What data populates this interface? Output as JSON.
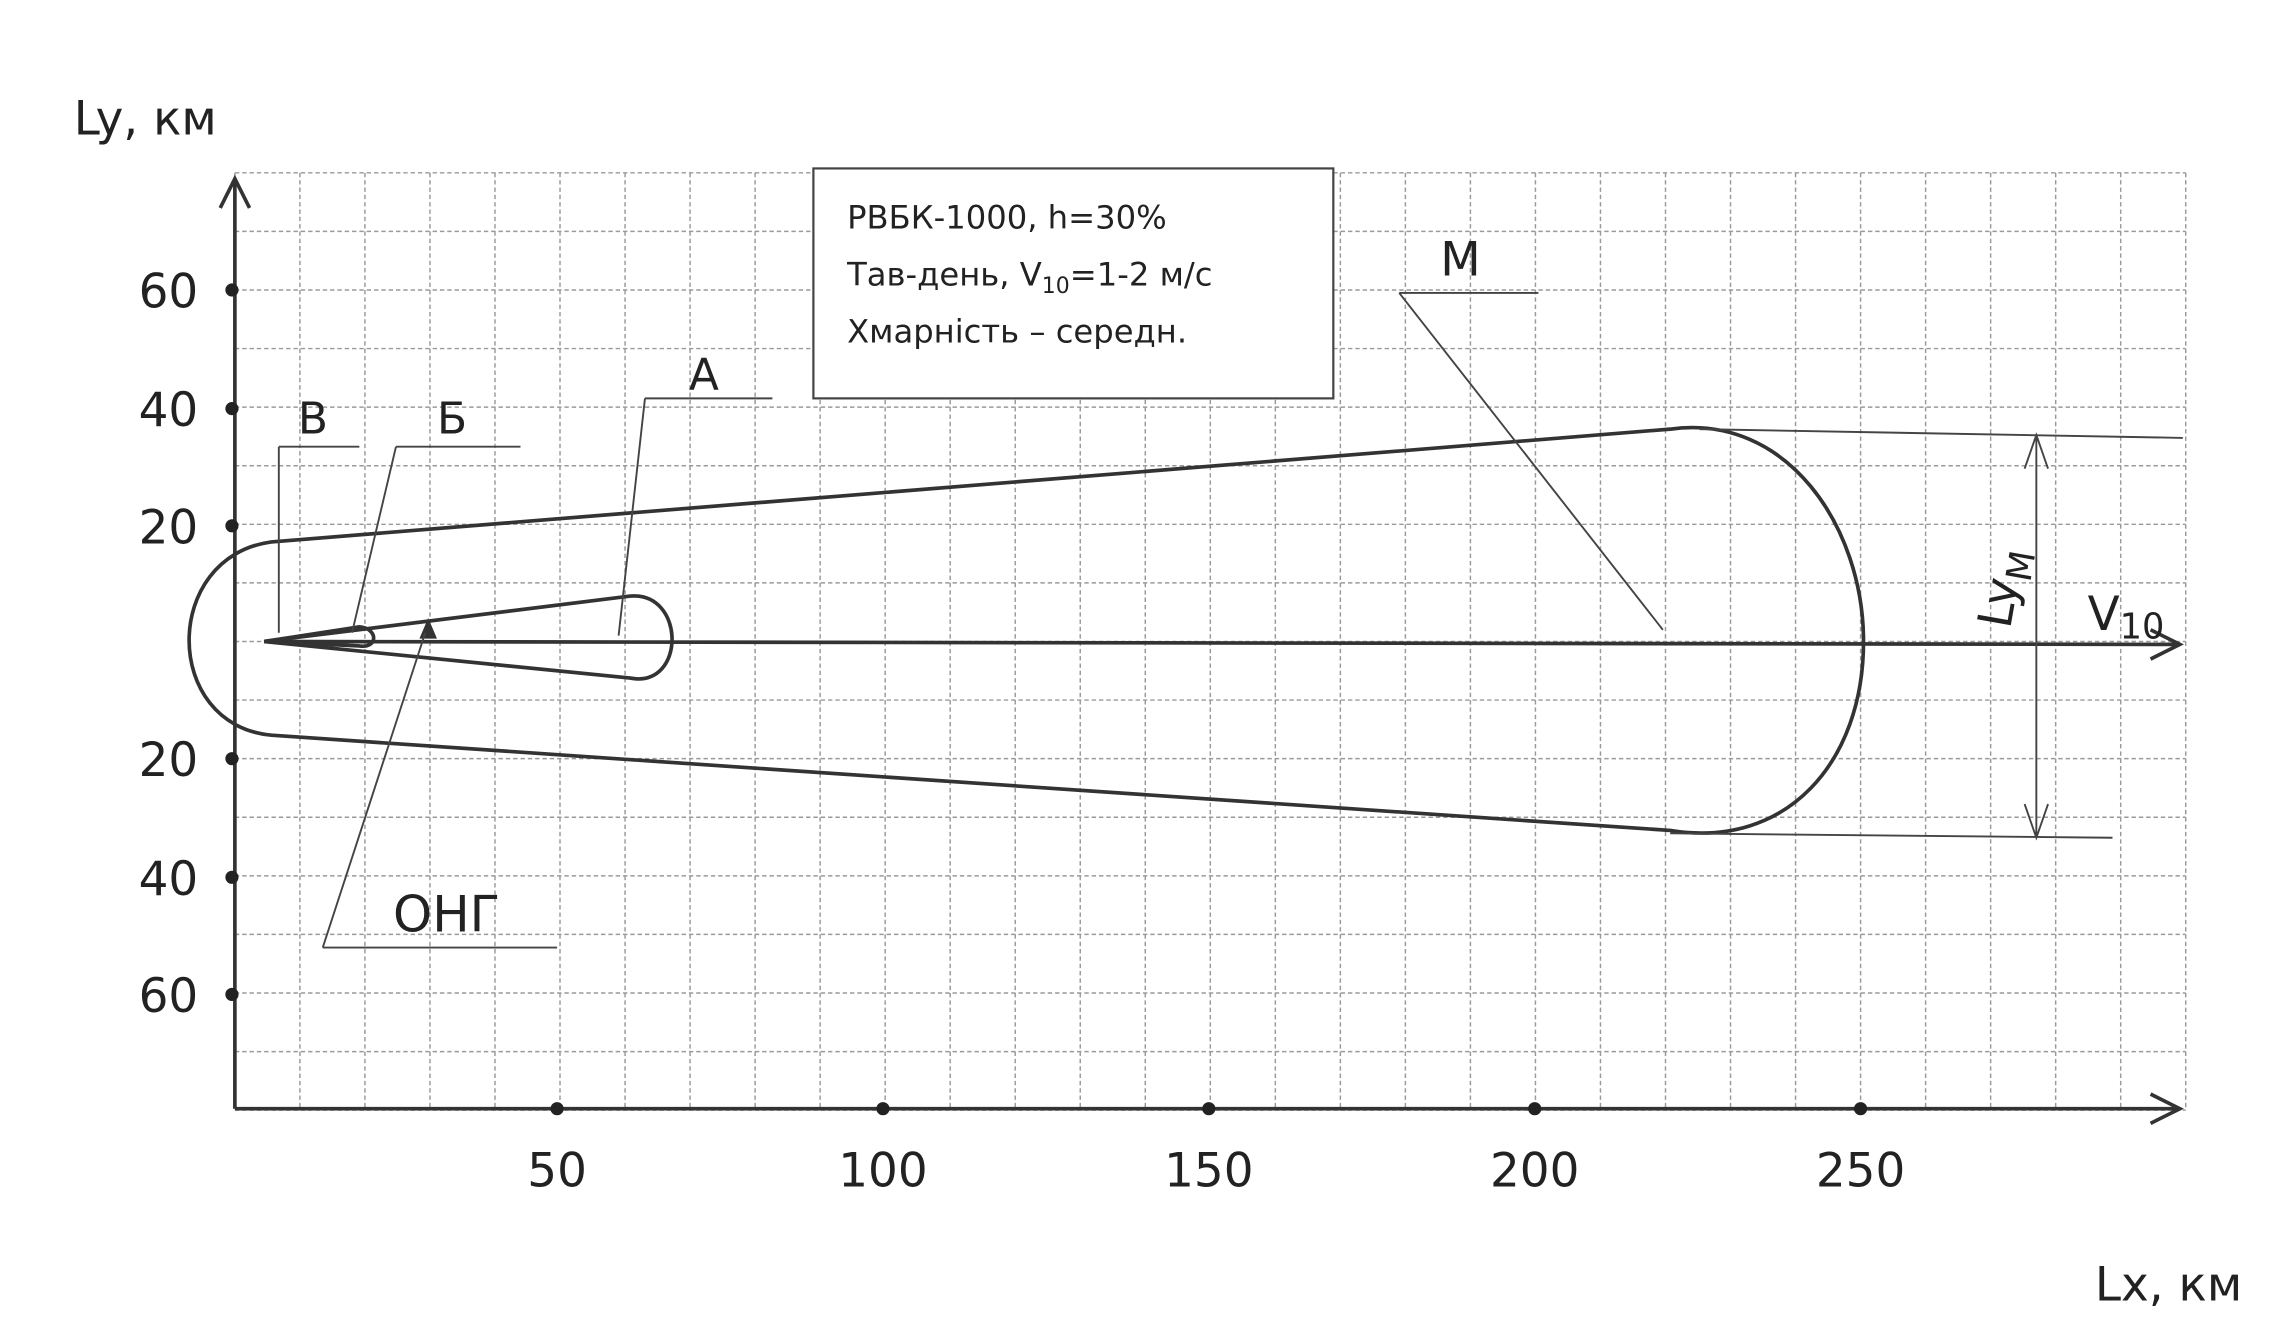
{
  "axes": {
    "y_label": "Ly, км",
    "x_label": "Lx, км",
    "y_ticks": [
      "60",
      "40",
      "20",
      "20",
      "40",
      "60"
    ],
    "x_ticks": [
      "50",
      "100",
      "150",
      "200",
      "250"
    ]
  },
  "info_box": {
    "line_1": "РВБК-1000, h=30%",
    "line_2": [
      "Тав-день, V",
      "10",
      "=1-2 м/с"
    ],
    "line_3": "Хмарність – середн."
  },
  "zones": {
    "m": "М",
    "a": "А",
    "b": "Б",
    "v": "В"
  },
  "source": "ОНГ",
  "wind": [
    "V",
    "10"
  ],
  "width_label": [
    "Ly",
    "М"
  ]
}
